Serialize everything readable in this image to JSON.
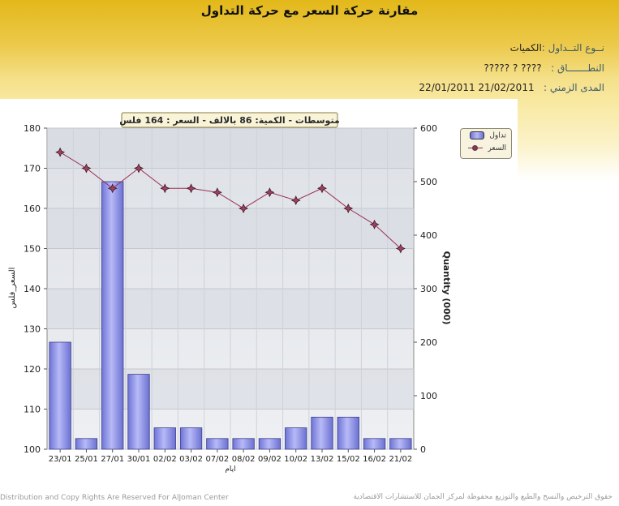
{
  "page": {
    "title": "مقارنة حركة السعر مع حركة التداول",
    "info": {
      "type_label": "نــوع التــداول :",
      "type_value": "الكميات",
      "range_label": "النطـــــــاق :",
      "range_value": "???? ? ?????",
      "period_label": "المدى الزمني :",
      "period_value": "21/02/2011 22/01/2011"
    },
    "footer_left": "Distribution and Copy Rights Are Reserved For AlJoman Center",
    "footer_right": "حقوق الترخيص والنسخ والطبع والتوزيع محفوظة لمركز الجمان للاستشارات الاقتصادية"
  },
  "chart_data": {
    "type": "bar+line",
    "annotation": "متوسطات - الكمية: 86 بالالف  - السعر : 164 فلس",
    "categories": [
      "23/01",
      "25/01",
      "27/01",
      "30/01",
      "02/02",
      "03/02",
      "07/02",
      "08/02",
      "09/02",
      "10/02",
      "13/02",
      "15/02",
      "16/02",
      "21/02"
    ],
    "series": [
      {
        "name": "تداول",
        "kind": "bar",
        "axis": "right",
        "color": "#8a8ee8",
        "values": [
          200,
          20,
          500,
          140,
          40,
          40,
          20,
          20,
          20,
          40,
          60,
          60,
          20,
          20
        ]
      },
      {
        "name": "السعر",
        "kind": "line",
        "axis": "left",
        "color": "#9b2e55",
        "values": [
          174,
          170,
          165,
          170,
          165,
          165,
          164,
          160,
          164,
          162,
          165,
          160,
          156,
          150
        ]
      }
    ],
    "y_left": {
      "label": "السعر_فلس",
      "min": 100,
      "max": 180,
      "ticks": [
        100,
        110,
        120,
        130,
        140,
        150,
        160,
        170,
        180
      ]
    },
    "y_right": {
      "label": "Quantity (000)",
      "min": 0,
      "max": 600,
      "ticks": [
        0,
        100,
        200,
        300,
        400,
        500,
        600
      ]
    },
    "xlabel": "ايام",
    "grid": true,
    "legend": "top-right"
  }
}
